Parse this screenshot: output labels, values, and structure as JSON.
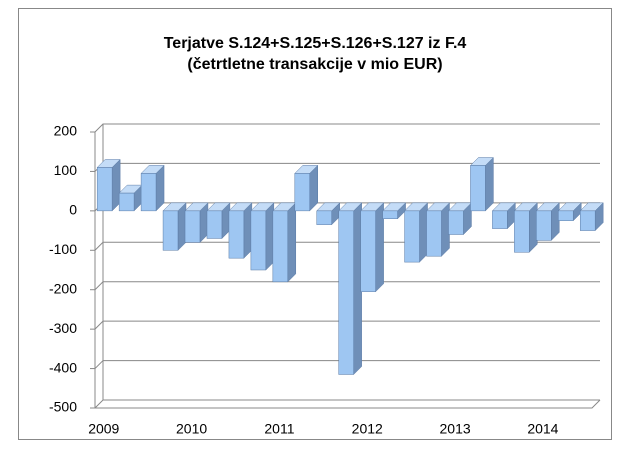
{
  "chart_data": {
    "type": "bar3d",
    "title": "Terjatve S.124+S.125+S.126+S.127 iz F.4",
    "subtitle": "(četrtletne transakcije v mio EUR)",
    "categories": [
      "2009",
      null,
      null,
      null,
      "2010",
      null,
      null,
      null,
      "2011",
      null,
      null,
      null,
      "2012",
      null,
      null,
      null,
      "2013",
      null,
      null,
      null,
      "2014",
      null,
      null
    ],
    "values": [
      110,
      45,
      95,
      -100,
      -80,
      -70,
      -120,
      -150,
      -180,
      95,
      -35,
      -415,
      -205,
      -20,
      -130,
      -115,
      -60,
      115,
      -45,
      -105,
      -75,
      -25,
      -50
    ],
    "color": "#9ec6f2",
    "ylim": [
      -500,
      200
    ],
    "yticks": [
      -500,
      -400,
      -300,
      -200,
      -100,
      0,
      100,
      200
    ],
    "grid": true
  }
}
